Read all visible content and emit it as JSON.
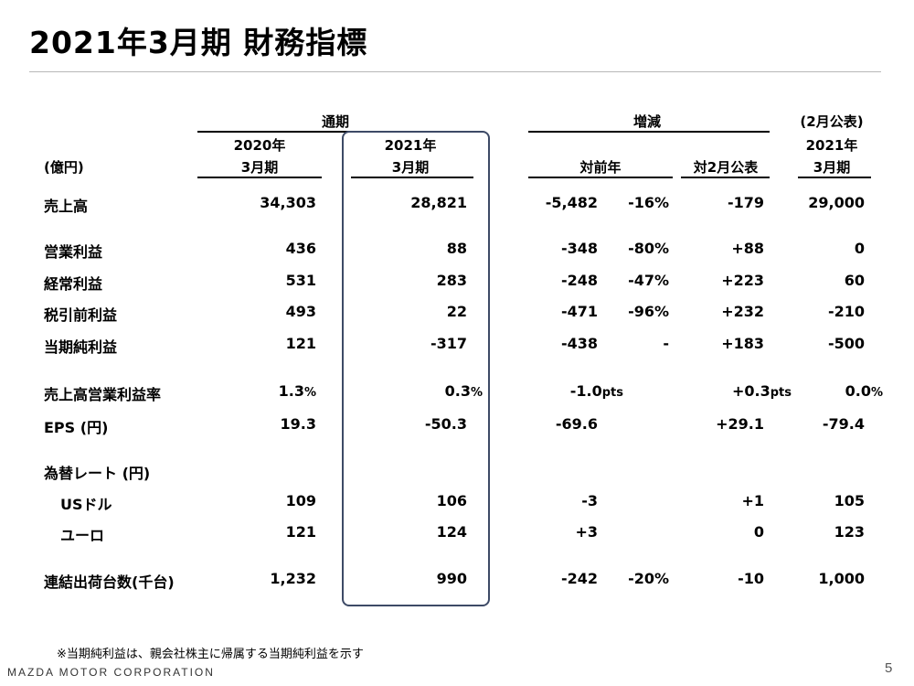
{
  "title": "2021年3月期 財務指標",
  "header": {
    "tsuki": "通期",
    "zougen": "増減",
    "feb_announce": "(2月公表)",
    "unit": "(億円)",
    "col_2020_year": "2020年",
    "col_2020_month": "3月期",
    "col_2021_year": "2021年",
    "col_2021_month": "3月期",
    "col_yoy": "対前年",
    "col_vs_feb": "対2月公表",
    "col_feb_year": "2021年",
    "col_feb_month": "3月期"
  },
  "rows": [
    {
      "label": "売上高",
      "fy2020": "34,303",
      "fy2021": "28,821",
      "yoy": "-5,482",
      "yoy_pct": "-16%",
      "vs_feb": "-179",
      "feb": "29,000"
    },
    {
      "label": "営業利益",
      "fy2020": "436",
      "fy2021": "88",
      "yoy": "-348",
      "yoy_pct": "-80%",
      "vs_feb": "+88",
      "feb": "0"
    },
    {
      "label": "経常利益",
      "fy2020": "531",
      "fy2021": "283",
      "yoy": "-248",
      "yoy_pct": "-47%",
      "vs_feb": "+223",
      "feb": "60"
    },
    {
      "label": "税引前利益",
      "fy2020": "493",
      "fy2021": "22",
      "yoy": "-471",
      "yoy_pct": "-96%",
      "vs_feb": "+232",
      "feb": "-210"
    },
    {
      "label": "当期純利益",
      "fy2020": "121",
      "fy2021": "-317",
      "yoy": "-438",
      "yoy_pct": "-",
      "vs_feb": "+183",
      "feb": "-500"
    },
    {
      "label": "売上高営業利益率",
      "fy2020": "1.3",
      "fy2021": "0.3",
      "yoy": "-1.0",
      "yoy_pct": "",
      "vs_feb": "+0.3",
      "feb": "0.0"
    },
    {
      "label": "EPS (円)",
      "fy2020": "19.3",
      "fy2021": "-50.3",
      "yoy": "-69.6",
      "yoy_pct": "",
      "vs_feb": "+29.1",
      "feb": "-79.4"
    },
    {
      "label": "為替レート (円)",
      "fy2020": "",
      "fy2021": "",
      "yoy": "",
      "yoy_pct": "",
      "vs_feb": "",
      "feb": ""
    },
    {
      "label": "USドル",
      "fy2020": "109",
      "fy2021": "106",
      "yoy": "-3",
      "yoy_pct": "",
      "vs_feb": "+1",
      "feb": "105"
    },
    {
      "label": "ユーロ",
      "fy2020": "121",
      "fy2021": "124",
      "yoy": "+3",
      "yoy_pct": "",
      "vs_feb": "0",
      "feb": "123"
    },
    {
      "label": "連結出荷台数(千台)",
      "fy2020": "1,232",
      "fy2021": "990",
      "yoy": "-242",
      "yoy_pct": "-20%",
      "vs_feb": "-10",
      "feb": "1,000"
    }
  ],
  "units": {
    "percent": "%",
    "pts": "pts"
  },
  "footnote": "※当期純利益は、親会社株主に帰属する当期純利益を示す",
  "footer_logo": "MAZDA MOTOR CORPORATION",
  "page_number": "5",
  "colors": {
    "highlight_border": "#3d4a66",
    "rule": "#b8b8b8"
  }
}
